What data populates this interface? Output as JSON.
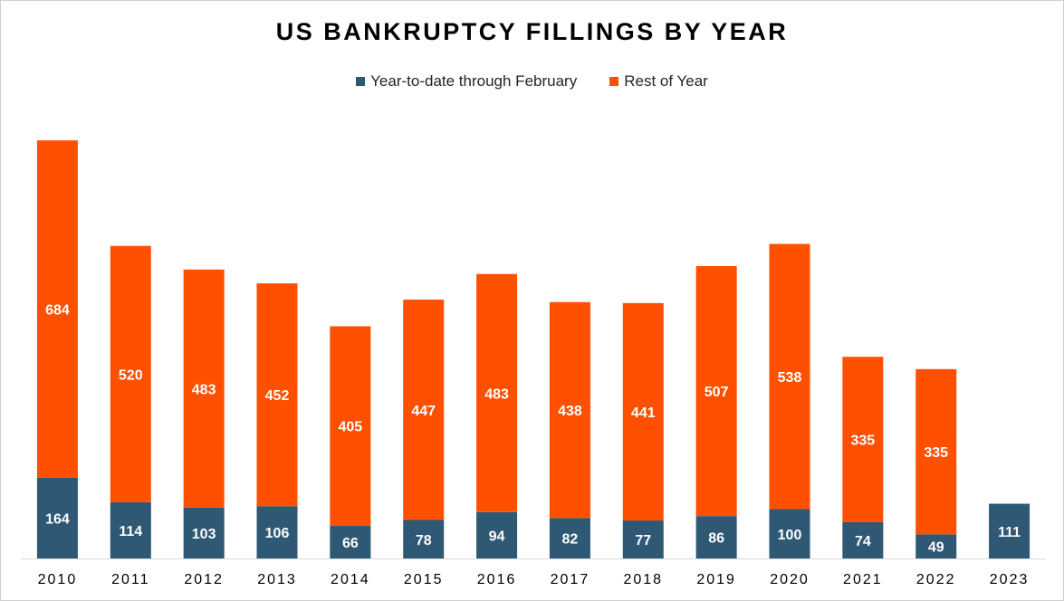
{
  "chart_data": {
    "type": "bar",
    "stacked": true,
    "title": "US BANKRUPTCY FILLINGS BY YEAR",
    "xlabel": "",
    "ylabel": "",
    "ylim": [
      0,
      1000
    ],
    "legend_position": "top-center",
    "categories": [
      "2010",
      "2011",
      "2012",
      "2013",
      "2014",
      "2015",
      "2016",
      "2017",
      "2018",
      "2019",
      "2020",
      "2021",
      "2022",
      "2023"
    ],
    "series": [
      {
        "name": "Year-to-date through February",
        "color": "#2E5873",
        "values": [
          164,
          114,
          103,
          106,
          66,
          78,
          94,
          82,
          77,
          86,
          100,
          74,
          49,
          111
        ]
      },
      {
        "name": "Rest of Year",
        "color": "#FF5000",
        "values": [
          684,
          520,
          483,
          452,
          405,
          447,
          483,
          438,
          441,
          507,
          538,
          335,
          335,
          null
        ]
      }
    ]
  }
}
